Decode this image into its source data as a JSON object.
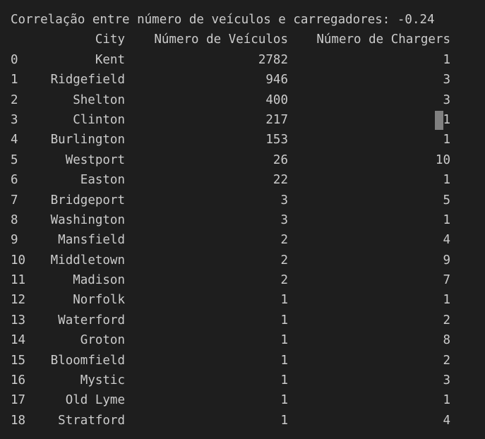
{
  "output": {
    "correlation_line": "Correlação entre número de veículos e carregadores: -0.24",
    "columns": {
      "city": "City",
      "vehicles": "Número de Veículos",
      "chargers": "Número de Chargers"
    },
    "rows": [
      {
        "idx": "0",
        "city": "Kent",
        "vehicles": "2782",
        "chargers": "1"
      },
      {
        "idx": "1",
        "city": "Ridgefield",
        "vehicles": "946",
        "chargers": "3"
      },
      {
        "idx": "2",
        "city": "Shelton",
        "vehicles": "400",
        "chargers": "3"
      },
      {
        "idx": "3",
        "city": "Clinton",
        "vehicles": "217",
        "chargers": "1"
      },
      {
        "idx": "4",
        "city": "Burlington",
        "vehicles": "153",
        "chargers": "1"
      },
      {
        "idx": "5",
        "city": "Westport",
        "vehicles": "26",
        "chargers": "10"
      },
      {
        "idx": "6",
        "city": "Easton",
        "vehicles": "22",
        "chargers": "1"
      },
      {
        "idx": "7",
        "city": "Bridgeport",
        "vehicles": "3",
        "chargers": "5"
      },
      {
        "idx": "8",
        "city": "Washington",
        "vehicles": "3",
        "chargers": "1"
      },
      {
        "idx": "9",
        "city": "Mansfield",
        "vehicles": "2",
        "chargers": "4"
      },
      {
        "idx": "10",
        "city": "Middletown",
        "vehicles": "2",
        "chargers": "9"
      },
      {
        "idx": "11",
        "city": "Madison",
        "vehicles": "2",
        "chargers": "7"
      },
      {
        "idx": "12",
        "city": "Norfolk",
        "vehicles": "1",
        "chargers": "1"
      },
      {
        "idx": "13",
        "city": "Waterford",
        "vehicles": "1",
        "chargers": "2"
      },
      {
        "idx": "14",
        "city": "Groton",
        "vehicles": "1",
        "chargers": "8"
      },
      {
        "idx": "15",
        "city": "Bloomfield",
        "vehicles": "1",
        "chargers": "2"
      },
      {
        "idx": "16",
        "city": "Mystic",
        "vehicles": "1",
        "chargers": "3"
      },
      {
        "idx": "17",
        "city": "Old Lyme",
        "vehicles": "1",
        "chargers": "1"
      },
      {
        "idx": "18",
        "city": "Stratford",
        "vehicles": "1",
        "chargers": "4"
      }
    ]
  },
  "colors": {
    "background": "#1e1e1e",
    "text": "#cccccc",
    "cursor": "#808080"
  }
}
